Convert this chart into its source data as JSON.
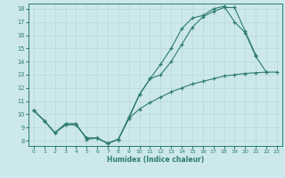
{
  "line1_x": [
    0,
    1,
    2,
    3,
    4,
    5,
    6,
    7,
    8,
    9,
    10,
    11,
    12,
    13,
    14,
    15,
    16,
    17,
    18,
    19,
    20,
    21
  ],
  "line1_y": [
    10.3,
    9.5,
    8.6,
    9.3,
    9.3,
    8.1,
    8.2,
    7.8,
    8.1,
    9.8,
    11.5,
    12.7,
    13.0,
    14.0,
    15.3,
    16.6,
    17.4,
    17.8,
    18.1,
    18.1,
    16.3,
    14.5
  ],
  "line2_x": [
    0,
    1,
    2,
    3,
    4,
    5,
    6,
    7,
    8,
    9,
    10,
    11,
    12,
    13,
    14,
    15,
    16,
    17,
    18,
    19,
    20,
    21,
    22,
    23
  ],
  "line2_y": [
    10.3,
    9.5,
    8.6,
    9.2,
    9.2,
    8.2,
    8.2,
    7.8,
    8.1,
    9.7,
    10.4,
    10.9,
    11.3,
    11.7,
    12.0,
    12.3,
    12.5,
    12.7,
    12.9,
    13.0,
    13.1,
    13.15,
    13.2,
    13.2
  ],
  "line3_x": [
    0,
    1,
    2,
    3,
    4,
    5,
    6,
    7,
    8,
    9,
    10,
    11,
    12,
    13,
    14,
    15,
    16,
    17,
    18,
    19,
    20,
    21,
    22
  ],
  "line3_y": [
    10.3,
    9.5,
    8.6,
    9.2,
    9.2,
    8.2,
    8.2,
    7.8,
    8.1,
    9.7,
    11.5,
    12.7,
    13.8,
    15.0,
    16.5,
    17.3,
    17.5,
    18.0,
    18.2,
    17.0,
    16.2,
    14.4,
    13.2
  ],
  "line_color": "#2e7d6e",
  "bg_color": "#cce8ec",
  "grid_color": "#b8d8dc",
  "xlabel": "Humidex (Indice chaleur)",
  "ylim": [
    8,
    18
  ],
  "xlim": [
    0,
    23
  ],
  "yticks": [
    8,
    9,
    10,
    11,
    12,
    13,
    14,
    15,
    16,
    17,
    18
  ],
  "xticks": [
    0,
    1,
    2,
    3,
    4,
    5,
    6,
    7,
    8,
    9,
    10,
    11,
    12,
    13,
    14,
    15,
    16,
    17,
    18,
    19,
    20,
    21,
    22,
    23
  ]
}
